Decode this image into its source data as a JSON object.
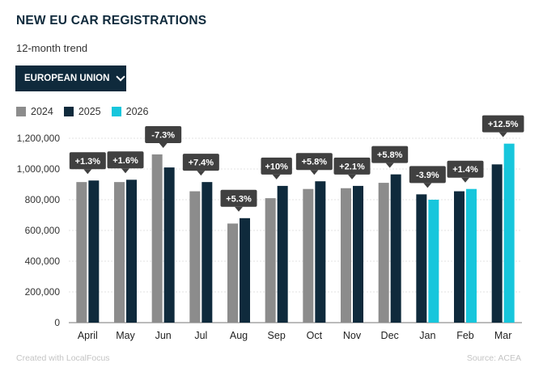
{
  "header": {
    "title": "NEW EU CAR REGISTRATIONS",
    "subtitle": "12-month trend"
  },
  "dropdown": {
    "selected": "EUROPEAN UNION",
    "icon": "chevron-down-icon"
  },
  "footer": {
    "credit": "Created with LocalFocus",
    "source": "Source: ACEA"
  },
  "colors": {
    "2024": "#8c8c8c",
    "2025": "#0f2a3c",
    "2026": "#17c6dc",
    "label_bg": "#404040"
  },
  "chart_data": {
    "type": "bar",
    "categories": [
      "April",
      "May",
      "Jun",
      "Jul",
      "Aug",
      "Sep",
      "Oct",
      "Nov",
      "Dec",
      "Jan",
      "Feb",
      "Mar"
    ],
    "series": [
      {
        "name": "2024",
        "values": [
          915000,
          915000,
          1095000,
          855000,
          645000,
          810000,
          870000,
          875000,
          910000,
          null,
          null,
          null
        ]
      },
      {
        "name": "2025",
        "values": [
          925000,
          930000,
          1010000,
          915000,
          680000,
          890000,
          920000,
          890000,
          965000,
          835000,
          855000,
          1030000
        ]
      },
      {
        "name": "2026",
        "values": [
          null,
          null,
          null,
          null,
          null,
          null,
          null,
          null,
          null,
          800000,
          870000,
          1165000
        ]
      }
    ],
    "annotations": [
      "+1.3%",
      "+1.6%",
      "-7.3%",
      "+7.4%",
      "+5.3%",
      "+10%",
      "+5.8%",
      "+2.1%",
      "+5.8%",
      "-3.9%",
      "+1.4%",
      "+12.5%"
    ],
    "y_ticks": [
      "0",
      "200,000",
      "400,000",
      "600,000",
      "800,000",
      "1,000,000",
      "1,200,000"
    ],
    "ylim": [
      0,
      1200000
    ],
    "legend_position": "top-left",
    "grid": true
  }
}
